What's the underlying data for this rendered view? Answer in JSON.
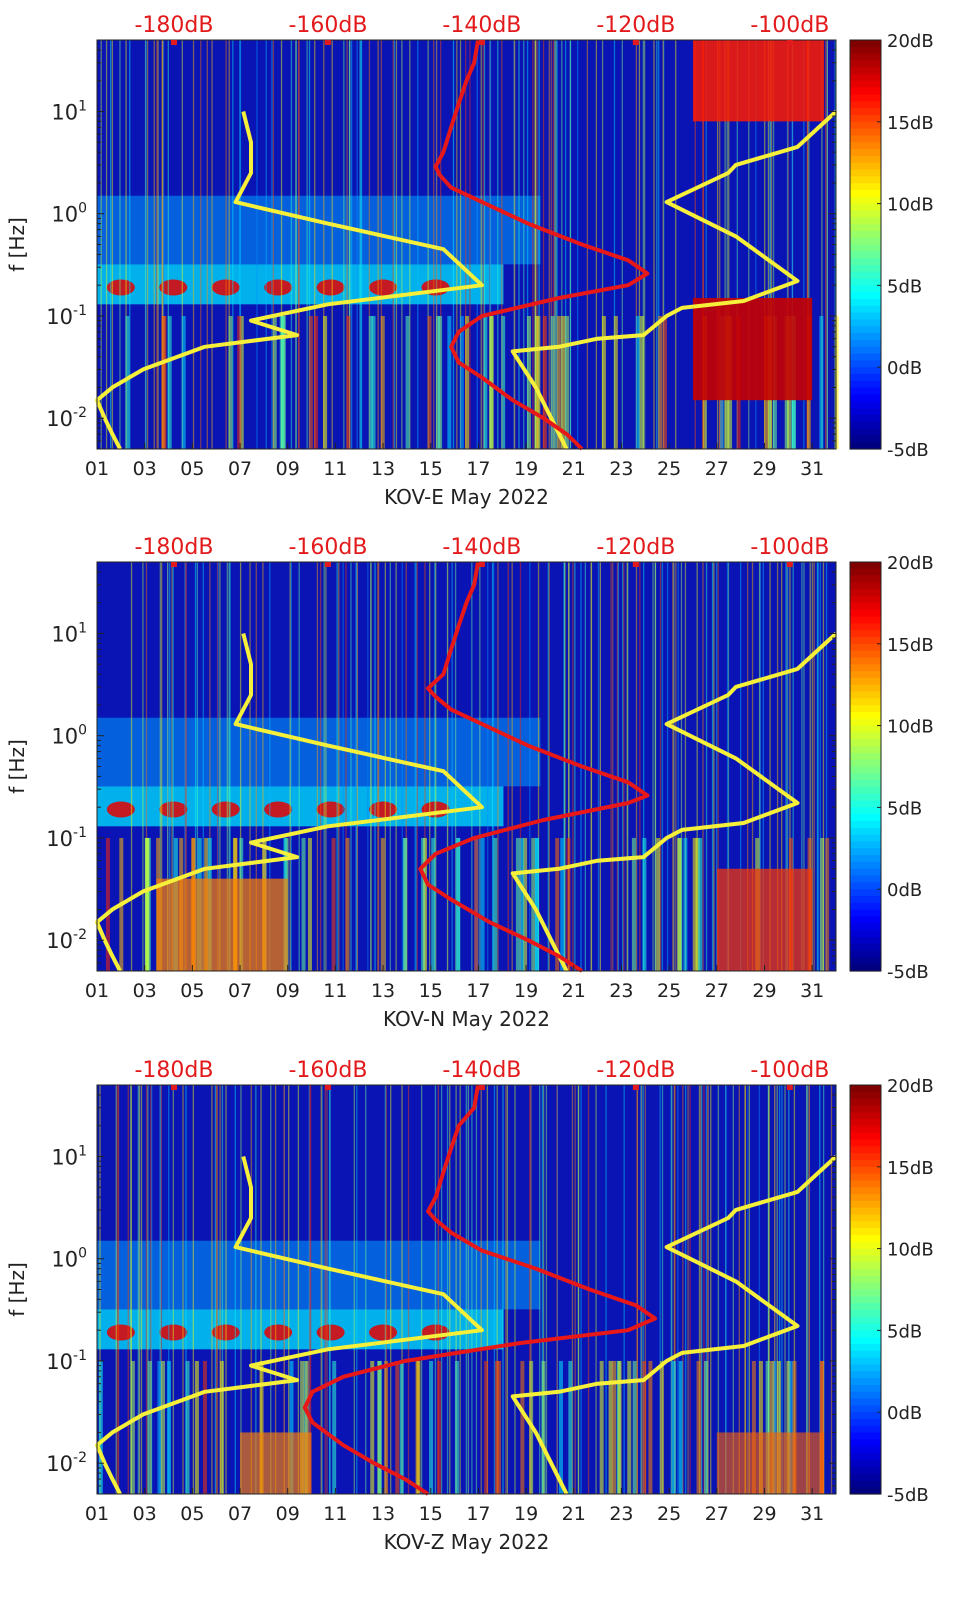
{
  "colors": {
    "top_axis": "#e31a1c",
    "red_curve": "#e81818",
    "yellow_curve": "#f6f03a",
    "axis": "#222222"
  },
  "chart_data": [
    {
      "type": "heatmap",
      "xlabel": "KOV-E May 2022",
      "ylabel": "f [Hz]",
      "x_ticks": [
        "01",
        "03",
        "05",
        "07",
        "09",
        "11",
        "13",
        "15",
        "17",
        "19",
        "21",
        "23",
        "25",
        "27",
        "29",
        "31"
      ],
      "xlim": [
        1,
        32
      ],
      "y_scale": "log",
      "ylim": [
        0.005,
        50
      ],
      "y_ticks": [
        {
          "value": 0.01,
          "base": "10",
          "exp": "-2"
        },
        {
          "value": 0.1,
          "base": "10",
          "exp": "-1"
        },
        {
          "value": 1,
          "base": "10",
          "exp": "0"
        },
        {
          "value": 10,
          "base": "10",
          "exp": "1"
        }
      ],
      "top_axis_ticks": [
        "-180dB",
        "-160dB",
        "-140dB",
        "-120dB",
        "-100dB"
      ],
      "top_axis_range": [
        -190,
        -94
      ],
      "colorbar_ticks": [
        "20dB",
        "15dB",
        "10dB",
        "5dB",
        "0dB",
        "-5dB"
      ],
      "colorbar_range": [
        -5,
        20
      ],
      "red_curve": [
        [
          -140.5,
          50
        ],
        [
          -141,
          30
        ],
        [
          -142,
          20
        ],
        [
          -143,
          12
        ],
        [
          -144,
          7
        ],
        [
          -145,
          4
        ],
        [
          -146,
          2.9
        ],
        [
          -145.5,
          2.4
        ],
        [
          -144,
          1.8
        ],
        [
          -139,
          1.2
        ],
        [
          -134,
          0.8
        ],
        [
          -127,
          0.5
        ],
        [
          -121,
          0.35
        ],
        [
          -118.5,
          0.26
        ],
        [
          -121,
          0.2
        ],
        [
          -130,
          0.15
        ],
        [
          -140,
          0.1
        ],
        [
          -143,
          0.07
        ],
        [
          -144,
          0.05
        ],
        [
          -143,
          0.035
        ],
        [
          -140,
          0.025
        ],
        [
          -136,
          0.015
        ],
        [
          -132,
          0.01
        ],
        [
          -129,
          0.007
        ],
        [
          -127,
          0.005
        ]
      ],
      "yellow_curve_left": [
        [
          -171,
          10
        ],
        [
          -170,
          5
        ],
        [
          -170,
          2.5
        ],
        [
          -172,
          1.3
        ],
        [
          -160,
          0.8
        ],
        [
          -145,
          0.45
        ],
        [
          -140,
          0.2
        ],
        [
          -160,
          0.13
        ],
        [
          -170,
          0.09
        ],
        [
          -164,
          0.065
        ],
        [
          -176,
          0.05
        ],
        [
          -184,
          0.03
        ],
        [
          -188,
          0.02
        ],
        [
          -190,
          0.015
        ],
        [
          -189,
          0.01
        ],
        [
          -188,
          0.007
        ],
        [
          -187,
          0.005
        ]
      ],
      "yellow_curve_right": [
        [
          -94,
          10
        ],
        [
          -99,
          4.5
        ],
        [
          -107,
          3
        ],
        [
          -108,
          2.5
        ],
        [
          -116,
          1.3
        ],
        [
          -107,
          0.6
        ],
        [
          -99,
          0.22
        ],
        [
          -106,
          0.14
        ],
        [
          -114,
          0.12
        ],
        [
          -116,
          0.1
        ],
        [
          -119,
          0.065
        ],
        [
          -125,
          0.06
        ],
        [
          -130,
          0.05
        ],
        [
          -136,
          0.045
        ],
        [
          -133,
          0.02
        ],
        [
          -131,
          0.01
        ],
        [
          -129,
          0.005
        ]
      ]
    },
    {
      "type": "heatmap",
      "xlabel": "KOV-N May 2022",
      "ylabel": "f [Hz]",
      "x_ticks": [
        "01",
        "03",
        "05",
        "07",
        "09",
        "11",
        "13",
        "15",
        "17",
        "19",
        "21",
        "23",
        "25",
        "27",
        "29",
        "31"
      ],
      "xlim": [
        1,
        32
      ],
      "y_scale": "log",
      "ylim": [
        0.005,
        50
      ],
      "y_ticks": [
        {
          "value": 0.01,
          "base": "10",
          "exp": "-2"
        },
        {
          "value": 0.1,
          "base": "10",
          "exp": "-1"
        },
        {
          "value": 1,
          "base": "10",
          "exp": "0"
        },
        {
          "value": 10,
          "base": "10",
          "exp": "1"
        }
      ],
      "top_axis_ticks": [
        "-180dB",
        "-160dB",
        "-140dB",
        "-120dB",
        "-100dB"
      ],
      "top_axis_range": [
        -190,
        -94
      ],
      "colorbar_ticks": [
        "20dB",
        "15dB",
        "10dB",
        "5dB",
        "0dB",
        "-5dB"
      ],
      "colorbar_range": [
        -5,
        20
      ],
      "red_curve": [
        [
          -140.5,
          50
        ],
        [
          -141,
          30
        ],
        [
          -142,
          20
        ],
        [
          -143,
          12
        ],
        [
          -144,
          7
        ],
        [
          -145,
          4
        ],
        [
          -147,
          2.9
        ],
        [
          -146,
          2.4
        ],
        [
          -144,
          1.8
        ],
        [
          -139,
          1.2
        ],
        [
          -134,
          0.8
        ],
        [
          -127,
          0.5
        ],
        [
          -121,
          0.35
        ],
        [
          -118.5,
          0.26
        ],
        [
          -121,
          0.22
        ],
        [
          -132,
          0.15
        ],
        [
          -141,
          0.1
        ],
        [
          -146,
          0.07
        ],
        [
          -148,
          0.05
        ],
        [
          -147,
          0.035
        ],
        [
          -144,
          0.025
        ],
        [
          -139,
          0.015
        ],
        [
          -134,
          0.01
        ],
        [
          -130,
          0.007
        ],
        [
          -127,
          0.005
        ]
      ],
      "yellow_curve_left": [
        [
          -171,
          10
        ],
        [
          -170,
          5
        ],
        [
          -170,
          2.5
        ],
        [
          -172,
          1.3
        ],
        [
          -160,
          0.8
        ],
        [
          -145,
          0.45
        ],
        [
          -140,
          0.2
        ],
        [
          -160,
          0.13
        ],
        [
          -170,
          0.09
        ],
        [
          -164,
          0.065
        ],
        [
          -176,
          0.05
        ],
        [
          -184,
          0.03
        ],
        [
          -188,
          0.02
        ],
        [
          -190,
          0.015
        ],
        [
          -189,
          0.01
        ],
        [
          -188,
          0.007
        ],
        [
          -187,
          0.005
        ]
      ],
      "yellow_curve_right": [
        [
          -94,
          10
        ],
        [
          -99,
          4.5
        ],
        [
          -107,
          3
        ],
        [
          -108,
          2.5
        ],
        [
          -116,
          1.3
        ],
        [
          -107,
          0.6
        ],
        [
          -99,
          0.22
        ],
        [
          -106,
          0.14
        ],
        [
          -114,
          0.12
        ],
        [
          -116,
          0.1
        ],
        [
          -119,
          0.065
        ],
        [
          -125,
          0.06
        ],
        [
          -130,
          0.05
        ],
        [
          -136,
          0.045
        ],
        [
          -133,
          0.02
        ],
        [
          -131,
          0.01
        ],
        [
          -129,
          0.005
        ]
      ]
    },
    {
      "type": "heatmap",
      "xlabel": "KOV-Z May 2022",
      "ylabel": "f [Hz]",
      "x_ticks": [
        "01",
        "03",
        "05",
        "07",
        "09",
        "11",
        "13",
        "15",
        "17",
        "19",
        "21",
        "23",
        "25",
        "27",
        "29",
        "31"
      ],
      "xlim": [
        1,
        32
      ],
      "y_scale": "log",
      "ylim": [
        0.005,
        50
      ],
      "y_ticks": [
        {
          "value": 0.01,
          "base": "10",
          "exp": "-2"
        },
        {
          "value": 0.1,
          "base": "10",
          "exp": "-1"
        },
        {
          "value": 1,
          "base": "10",
          "exp": "0"
        },
        {
          "value": 10,
          "base": "10",
          "exp": "1"
        }
      ],
      "top_axis_ticks": [
        "-180dB",
        "-160dB",
        "-140dB",
        "-120dB",
        "-100dB"
      ],
      "top_axis_range": [
        -190,
        -94
      ],
      "colorbar_ticks": [
        "20dB",
        "15dB",
        "10dB",
        "5dB",
        "0dB",
        "-5dB"
      ],
      "colorbar_range": [
        -5,
        20
      ],
      "red_curve": [
        [
          -140.5,
          50
        ],
        [
          -141,
          30
        ],
        [
          -143,
          20
        ],
        [
          -144,
          12
        ],
        [
          -145,
          7
        ],
        [
          -146,
          4
        ],
        [
          -147,
          2.9
        ],
        [
          -146,
          2.4
        ],
        [
          -144,
          1.8
        ],
        [
          -140,
          1.2
        ],
        [
          -133,
          0.8
        ],
        [
          -126,
          0.5
        ],
        [
          -120,
          0.35
        ],
        [
          -117.5,
          0.26
        ],
        [
          -121,
          0.2
        ],
        [
          -135,
          0.15
        ],
        [
          -150,
          0.1
        ],
        [
          -158,
          0.07
        ],
        [
          -162,
          0.05
        ],
        [
          -163,
          0.035
        ],
        [
          -162,
          0.025
        ],
        [
          -158,
          0.015
        ],
        [
          -154,
          0.01
        ],
        [
          -150,
          0.007
        ],
        [
          -147,
          0.005
        ]
      ],
      "yellow_curve_left": [
        [
          -171,
          10
        ],
        [
          -170,
          5
        ],
        [
          -170,
          2.5
        ],
        [
          -172,
          1.3
        ],
        [
          -160,
          0.8
        ],
        [
          -145,
          0.45
        ],
        [
          -140,
          0.2
        ],
        [
          -160,
          0.13
        ],
        [
          -170,
          0.09
        ],
        [
          -164,
          0.065
        ],
        [
          -176,
          0.05
        ],
        [
          -184,
          0.03
        ],
        [
          -188,
          0.02
        ],
        [
          -190,
          0.015
        ],
        [
          -189,
          0.01
        ],
        [
          -188,
          0.007
        ],
        [
          -187,
          0.005
        ]
      ],
      "yellow_curve_right": [
        [
          -94,
          10
        ],
        [
          -99,
          4.5
        ],
        [
          -107,
          3
        ],
        [
          -108,
          2.5
        ],
        [
          -116,
          1.3
        ],
        [
          -107,
          0.6
        ],
        [
          -99,
          0.22
        ],
        [
          -106,
          0.14
        ],
        [
          -114,
          0.12
        ],
        [
          -116,
          0.1
        ],
        [
          -119,
          0.065
        ],
        [
          -125,
          0.06
        ],
        [
          -130,
          0.05
        ],
        [
          -136,
          0.045
        ],
        [
          -133,
          0.02
        ],
        [
          -131,
          0.01
        ],
        [
          -129,
          0.005
        ]
      ]
    }
  ]
}
